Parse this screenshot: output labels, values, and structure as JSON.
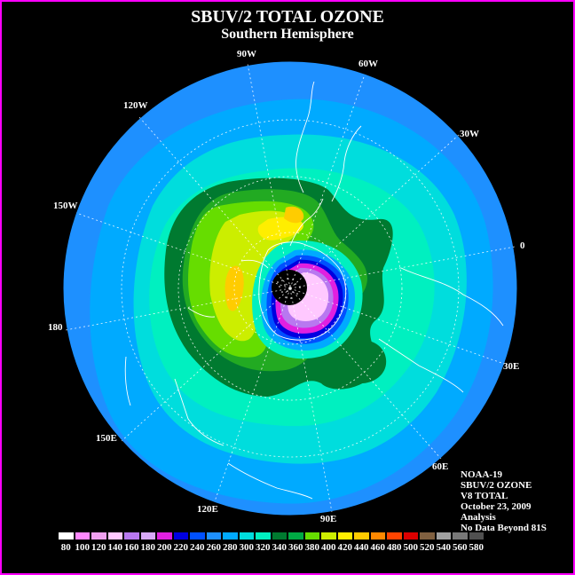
{
  "title": "SBUV/2 TOTAL OZONE",
  "subtitle": "Southern Hemisphere",
  "longitude_labels": [
    "90W",
    "60W",
    "30W",
    "0",
    "30E",
    "60E",
    "90E",
    "120E",
    "150E",
    "180",
    "150W",
    "120W"
  ],
  "info": {
    "satellite": "NOAA-19",
    "instrument": "SBUV/2 OZONE",
    "version": "V8 TOTAL",
    "date": "October 23, 2009",
    "product": "Analysis",
    "note": "No Data Beyond 81S"
  },
  "colorbar": {
    "labels": [
      "80",
      "100",
      "120",
      "140",
      "160",
      "180",
      "200",
      "220",
      "240",
      "260",
      "280",
      "300",
      "320",
      "340",
      "360",
      "380",
      "400",
      "420",
      "440",
      "460",
      "480",
      "500",
      "520",
      "540",
      "560",
      "580"
    ],
    "colors": [
      "#ffffff",
      "#ff88ff",
      "#f0a0f0",
      "#ffc8ff",
      "#b878f0",
      "#d8a8f8",
      "#e020e0",
      "#0000e0",
      "#0050ff",
      "#1e90ff",
      "#00aaff",
      "#00dddd",
      "#00f0c0",
      "#007a30",
      "#00aa44",
      "#66dd00",
      "#ccee00",
      "#ffee00",
      "#ffcc00",
      "#ff8800",
      "#ff4400",
      "#dd0000",
      "#806040",
      "#a0a0a0",
      "#787878",
      "#505050"
    ]
  },
  "colors": {
    "background": "#000000",
    "border": "#ff00ff",
    "outer_ocean": "#1e90ff",
    "no_data": "#000000"
  }
}
